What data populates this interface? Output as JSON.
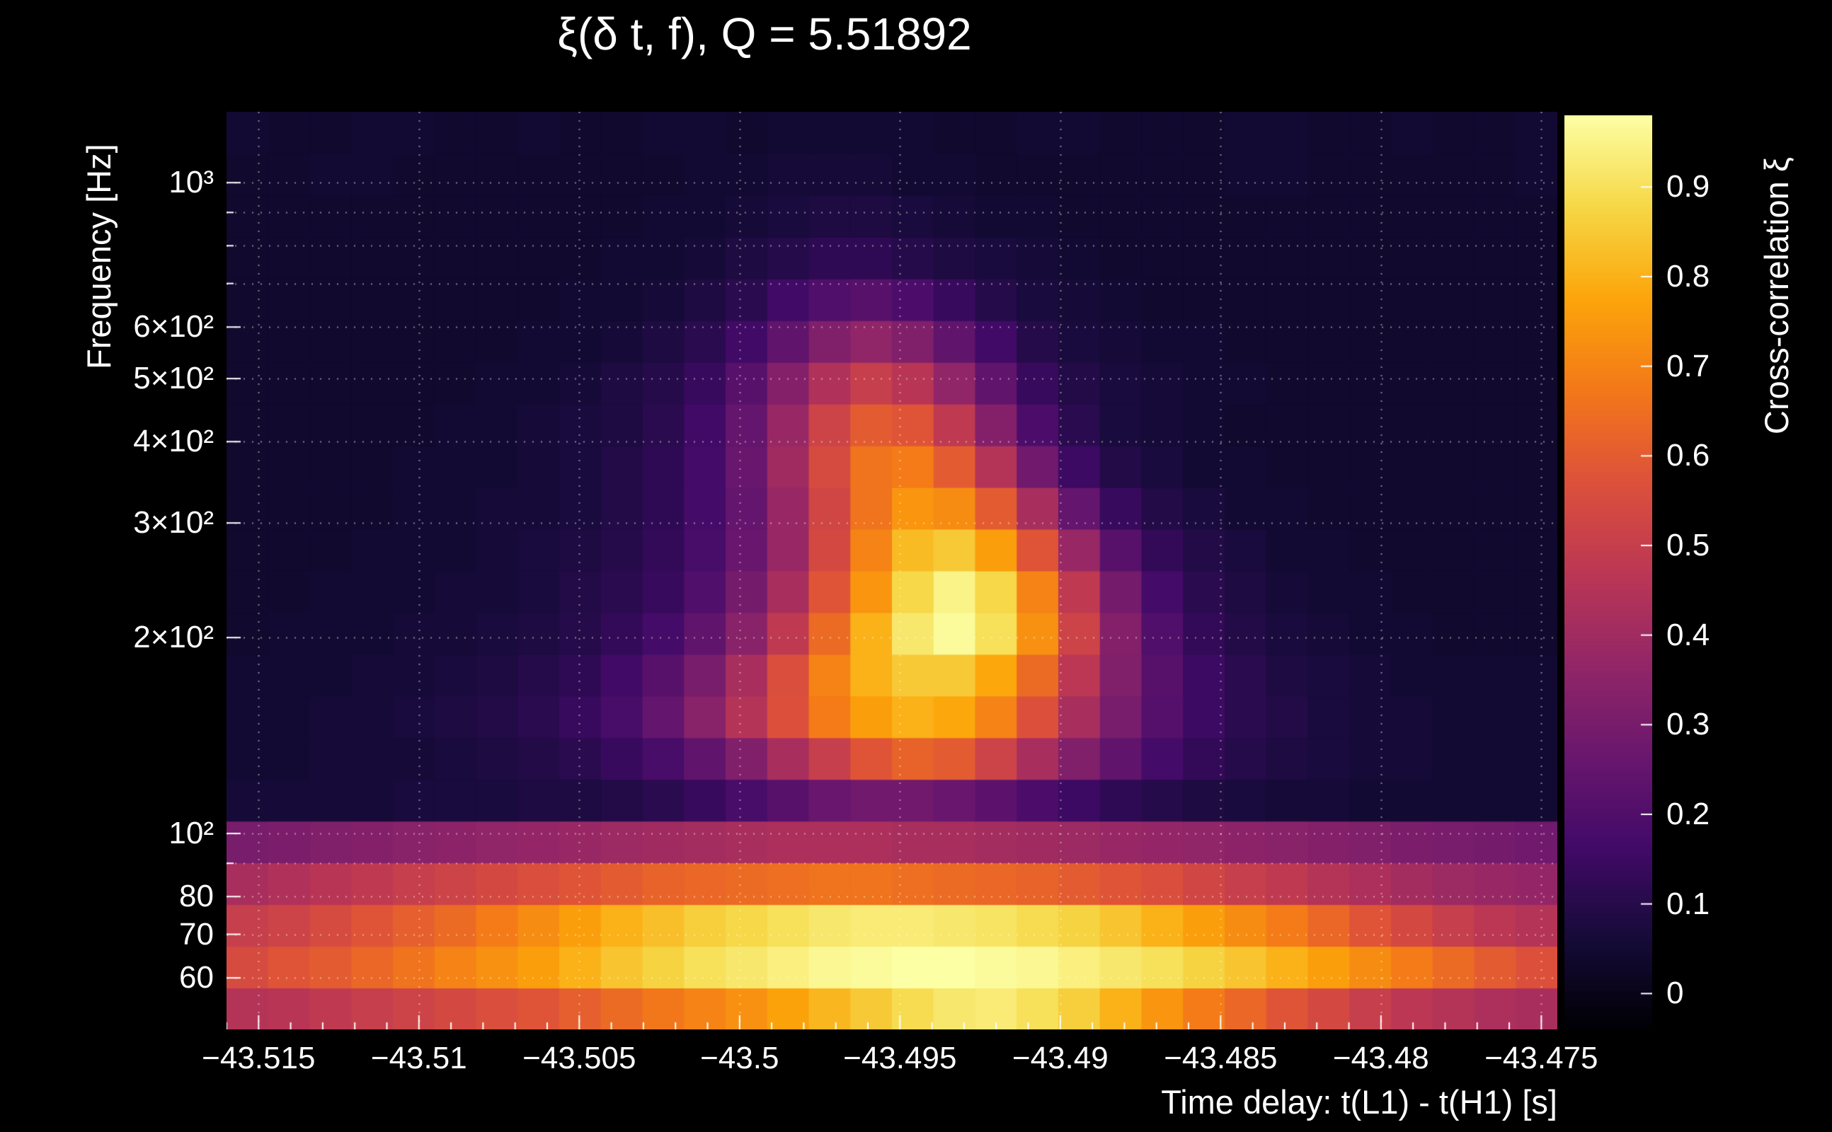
{
  "title": "ξ(δ t, f), Q = 5.51892",
  "q_value": 5.51892,
  "axes": {
    "x": {
      "title": "Time delay: t(L1) - t(H1) [s]",
      "range_s": [
        -43.516,
        -43.4745
      ],
      "tick_labels": [
        "−43.515",
        "−43.51",
        "−43.505",
        "−43.5",
        "−43.495",
        "−43.49",
        "−43.485",
        "−43.48",
        "−43.475"
      ],
      "tick_values": [
        -43.515,
        -43.51,
        -43.505,
        -43.5,
        -43.495,
        -43.49,
        -43.485,
        -43.48,
        -43.475
      ],
      "minor_tick_step_s": 0.001
    },
    "y": {
      "title": "Frequency [Hz]",
      "scale": "log",
      "range_hz": [
        50,
        1285
      ],
      "tick_labels": [
        "10³",
        "6×10²",
        "5×10²",
        "4×10²",
        "3×10²",
        "2×10²",
        "10²",
        "80",
        "70",
        "60"
      ],
      "tick_values": [
        1000,
        600,
        500,
        400,
        300,
        200,
        100,
        80,
        70,
        60
      ],
      "grid_values_hz": [
        60,
        70,
        80,
        90,
        100,
        200,
        300,
        400,
        500,
        600,
        700,
        800,
        900,
        1000
      ]
    },
    "colorbar": {
      "title": "Cross-correlation ξ",
      "tick_labels": [
        "0.9",
        "0.8",
        "0.7",
        "0.6",
        "0.5",
        "0.4",
        "0.3",
        "0.2",
        "0.1",
        "0"
      ],
      "tick_values": [
        0.9,
        0.8,
        0.7,
        0.6,
        0.5,
        0.4,
        0.3,
        0.2,
        0.1,
        0
      ],
      "display_range": [
        -0.04,
        0.98
      ]
    }
  },
  "chart_data": {
    "type": "heatmap",
    "title": "ξ(δ t, f), Q = 5.51892",
    "xlabel": "Time delay: t(L1) - t(H1) [s]",
    "ylabel": "Frequency [Hz]",
    "zlabel": "Cross-correlation ξ",
    "x_range": [
      -43.516,
      -43.4745
    ],
    "y_range_hz": [
      50,
      1285
    ],
    "y_scale": "log",
    "z_range": [
      0,
      0.98
    ],
    "n_cols": 32,
    "n_rows": 22,
    "rows_order": "low-frequency-first",
    "freq_bin_centers_hz": [
      54,
      62,
      72,
      84,
      97,
      113,
      131,
      151,
      175,
      203,
      236,
      273,
      316,
      367,
      425,
      492,
      571,
      661,
      767,
      888,
      1030,
      1193
    ],
    "values": [
      [
        0.45,
        0.46,
        0.48,
        0.5,
        0.52,
        0.54,
        0.56,
        0.58,
        0.61,
        0.64,
        0.67,
        0.7,
        0.73,
        0.77,
        0.81,
        0.85,
        0.89,
        0.92,
        0.93,
        0.9,
        0.86,
        0.8,
        0.74,
        0.68,
        0.63,
        0.58,
        0.54,
        0.5,
        0.47,
        0.45,
        0.43,
        0.42
      ],
      [
        0.55,
        0.58,
        0.6,
        0.63,
        0.66,
        0.7,
        0.73,
        0.76,
        0.8,
        0.84,
        0.87,
        0.9,
        0.92,
        0.94,
        0.96,
        0.97,
        0.98,
        0.98,
        0.97,
        0.96,
        0.94,
        0.92,
        0.9,
        0.87,
        0.84,
        0.8,
        0.76,
        0.72,
        0.68,
        0.64,
        0.6,
        0.57
      ],
      [
        0.5,
        0.52,
        0.55,
        0.58,
        0.61,
        0.64,
        0.68,
        0.72,
        0.76,
        0.8,
        0.83,
        0.86,
        0.88,
        0.9,
        0.92,
        0.93,
        0.93,
        0.92,
        0.91,
        0.89,
        0.87,
        0.84,
        0.8,
        0.76,
        0.72,
        0.68,
        0.63,
        0.58,
        0.54,
        0.5,
        0.47,
        0.45
      ],
      [
        0.42,
        0.44,
        0.46,
        0.48,
        0.5,
        0.52,
        0.54,
        0.56,
        0.58,
        0.6,
        0.62,
        0.63,
        0.64,
        0.65,
        0.66,
        0.66,
        0.65,
        0.64,
        0.63,
        0.62,
        0.6,
        0.58,
        0.56,
        0.53,
        0.5,
        0.48,
        0.45,
        0.43,
        0.41,
        0.39,
        0.38,
        0.37
      ],
      [
        0.3,
        0.31,
        0.32,
        0.33,
        0.34,
        0.35,
        0.36,
        0.37,
        0.38,
        0.39,
        0.4,
        0.41,
        0.42,
        0.43,
        0.43,
        0.43,
        0.42,
        0.42,
        0.41,
        0.4,
        0.39,
        0.38,
        0.37,
        0.36,
        0.35,
        0.34,
        0.33,
        0.32,
        0.31,
        0.3,
        0.29,
        0.28
      ],
      [
        0.06,
        0.06,
        0.06,
        0.06,
        0.07,
        0.07,
        0.07,
        0.08,
        0.08,
        0.09,
        0.11,
        0.14,
        0.18,
        0.22,
        0.26,
        0.28,
        0.28,
        0.26,
        0.23,
        0.19,
        0.15,
        0.12,
        0.1,
        0.08,
        0.07,
        0.06,
        0.06,
        0.05,
        0.05,
        0.05,
        0.05,
        0.05
      ],
      [
        0.05,
        0.05,
        0.06,
        0.06,
        0.06,
        0.07,
        0.08,
        0.09,
        0.11,
        0.14,
        0.18,
        0.24,
        0.32,
        0.42,
        0.5,
        0.58,
        0.62,
        0.6,
        0.52,
        0.42,
        0.32,
        0.24,
        0.17,
        0.13,
        0.1,
        0.08,
        0.07,
        0.06,
        0.06,
        0.05,
        0.05,
        0.05
      ],
      [
        0.05,
        0.05,
        0.06,
        0.06,
        0.07,
        0.08,
        0.09,
        0.11,
        0.14,
        0.18,
        0.25,
        0.34,
        0.45,
        0.57,
        0.68,
        0.76,
        0.8,
        0.78,
        0.7,
        0.57,
        0.42,
        0.3,
        0.21,
        0.15,
        0.11,
        0.09,
        0.07,
        0.06,
        0.06,
        0.05,
        0.05,
        0.05
      ],
      [
        0.05,
        0.05,
        0.05,
        0.06,
        0.06,
        0.07,
        0.08,
        0.1,
        0.12,
        0.16,
        0.22,
        0.3,
        0.42,
        0.56,
        0.7,
        0.8,
        0.85,
        0.85,
        0.78,
        0.64,
        0.47,
        0.32,
        0.22,
        0.15,
        0.11,
        0.08,
        0.07,
        0.06,
        0.05,
        0.05,
        0.05,
        0.05
      ],
      [
        0.04,
        0.05,
        0.05,
        0.05,
        0.06,
        0.06,
        0.07,
        0.08,
        0.1,
        0.13,
        0.17,
        0.24,
        0.34,
        0.48,
        0.64,
        0.8,
        0.92,
        0.97,
        0.9,
        0.73,
        0.52,
        0.33,
        0.2,
        0.13,
        0.09,
        0.07,
        0.06,
        0.05,
        0.05,
        0.04,
        0.04,
        0.04
      ],
      [
        0.04,
        0.04,
        0.05,
        0.05,
        0.05,
        0.06,
        0.06,
        0.07,
        0.09,
        0.11,
        0.14,
        0.2,
        0.29,
        0.42,
        0.58,
        0.74,
        0.88,
        0.95,
        0.88,
        0.7,
        0.48,
        0.29,
        0.17,
        0.11,
        0.08,
        0.06,
        0.05,
        0.05,
        0.04,
        0.04,
        0.04,
        0.04
      ],
      [
        0.04,
        0.04,
        0.04,
        0.05,
        0.05,
        0.05,
        0.06,
        0.07,
        0.08,
        0.1,
        0.13,
        0.18,
        0.26,
        0.38,
        0.54,
        0.7,
        0.82,
        0.85,
        0.76,
        0.58,
        0.38,
        0.22,
        0.13,
        0.09,
        0.07,
        0.05,
        0.05,
        0.04,
        0.04,
        0.04,
        0.04,
        0.04
      ],
      [
        0.04,
        0.04,
        0.04,
        0.04,
        0.05,
        0.05,
        0.06,
        0.06,
        0.07,
        0.09,
        0.12,
        0.17,
        0.25,
        0.38,
        0.53,
        0.66,
        0.74,
        0.72,
        0.6,
        0.42,
        0.25,
        0.14,
        0.09,
        0.07,
        0.05,
        0.05,
        0.04,
        0.04,
        0.04,
        0.04,
        0.04,
        0.04
      ],
      [
        0.04,
        0.04,
        0.04,
        0.04,
        0.05,
        0.05,
        0.05,
        0.06,
        0.07,
        0.09,
        0.12,
        0.17,
        0.26,
        0.4,
        0.55,
        0.66,
        0.68,
        0.6,
        0.45,
        0.28,
        0.15,
        0.09,
        0.07,
        0.05,
        0.05,
        0.04,
        0.04,
        0.04,
        0.04,
        0.04,
        0.04,
        0.04
      ],
      [
        0.04,
        0.04,
        0.04,
        0.04,
        0.04,
        0.05,
        0.05,
        0.06,
        0.07,
        0.08,
        0.11,
        0.16,
        0.25,
        0.38,
        0.52,
        0.6,
        0.58,
        0.48,
        0.33,
        0.19,
        0.11,
        0.07,
        0.06,
        0.05,
        0.04,
        0.04,
        0.04,
        0.04,
        0.04,
        0.04,
        0.04,
        0.04
      ],
      [
        0.04,
        0.04,
        0.04,
        0.04,
        0.04,
        0.04,
        0.05,
        0.05,
        0.06,
        0.08,
        0.1,
        0.14,
        0.22,
        0.33,
        0.44,
        0.5,
        0.46,
        0.36,
        0.24,
        0.14,
        0.09,
        0.07,
        0.06,
        0.05,
        0.05,
        0.04,
        0.04,
        0.04,
        0.04,
        0.04,
        0.04,
        0.04
      ],
      [
        0.04,
        0.04,
        0.04,
        0.04,
        0.04,
        0.04,
        0.04,
        0.05,
        0.05,
        0.06,
        0.08,
        0.11,
        0.16,
        0.24,
        0.32,
        0.36,
        0.32,
        0.24,
        0.16,
        0.1,
        0.07,
        0.06,
        0.05,
        0.05,
        0.04,
        0.04,
        0.04,
        0.04,
        0.04,
        0.04,
        0.04,
        0.04
      ],
      [
        0.04,
        0.04,
        0.04,
        0.04,
        0.04,
        0.04,
        0.04,
        0.04,
        0.05,
        0.05,
        0.06,
        0.08,
        0.11,
        0.16,
        0.2,
        0.22,
        0.19,
        0.14,
        0.1,
        0.07,
        0.06,
        0.05,
        0.04,
        0.04,
        0.04,
        0.04,
        0.04,
        0.04,
        0.04,
        0.04,
        0.04,
        0.04
      ],
      [
        0.04,
        0.04,
        0.04,
        0.04,
        0.04,
        0.04,
        0.04,
        0.04,
        0.04,
        0.05,
        0.05,
        0.06,
        0.08,
        0.1,
        0.12,
        0.12,
        0.1,
        0.08,
        0.07,
        0.06,
        0.05,
        0.04,
        0.04,
        0.04,
        0.04,
        0.04,
        0.04,
        0.04,
        0.04,
        0.04,
        0.04,
        0.04
      ],
      [
        0.04,
        0.04,
        0.04,
        0.04,
        0.04,
        0.04,
        0.04,
        0.04,
        0.04,
        0.04,
        0.05,
        0.05,
        0.06,
        0.07,
        0.08,
        0.08,
        0.07,
        0.06,
        0.05,
        0.05,
        0.04,
        0.04,
        0.04,
        0.04,
        0.04,
        0.04,
        0.04,
        0.04,
        0.04,
        0.04,
        0.04,
        0.04
      ],
      [
        0.04,
        0.04,
        0.05,
        0.05,
        0.04,
        0.04,
        0.04,
        0.04,
        0.04,
        0.04,
        0.04,
        0.05,
        0.05,
        0.06,
        0.06,
        0.06,
        0.05,
        0.05,
        0.04,
        0.04,
        0.04,
        0.04,
        0.04,
        0.04,
        0.05,
        0.05,
        0.04,
        0.04,
        0.04,
        0.04,
        0.04,
        0.05
      ],
      [
        0.05,
        0.04,
        0.04,
        0.05,
        0.05,
        0.04,
        0.04,
        0.05,
        0.04,
        0.04,
        0.05,
        0.05,
        0.04,
        0.05,
        0.05,
        0.05,
        0.05,
        0.04,
        0.04,
        0.05,
        0.05,
        0.04,
        0.04,
        0.04,
        0.05,
        0.05,
        0.04,
        0.04,
        0.05,
        0.04,
        0.04,
        0.05
      ]
    ]
  },
  "colormap": {
    "name": "inferno",
    "stops": [
      {
        "t": 0.0,
        "c": "#000004"
      },
      {
        "t": 0.1,
        "c": "#160b39"
      },
      {
        "t": 0.2,
        "c": "#420a68"
      },
      {
        "t": 0.3,
        "c": "#6a176e"
      },
      {
        "t": 0.4,
        "c": "#932667"
      },
      {
        "t": 0.5,
        "c": "#bc3754"
      },
      {
        "t": 0.6,
        "c": "#dd513a"
      },
      {
        "t": 0.7,
        "c": "#f37819"
      },
      {
        "t": 0.8,
        "c": "#fca50a"
      },
      {
        "t": 0.9,
        "c": "#f6d746"
      },
      {
        "t": 1.0,
        "c": "#fcffa4"
      }
    ]
  },
  "style": {
    "background": "#000000",
    "text_color": "#ffffff",
    "grid_color": "rgba(255,255,225,0.5)"
  }
}
